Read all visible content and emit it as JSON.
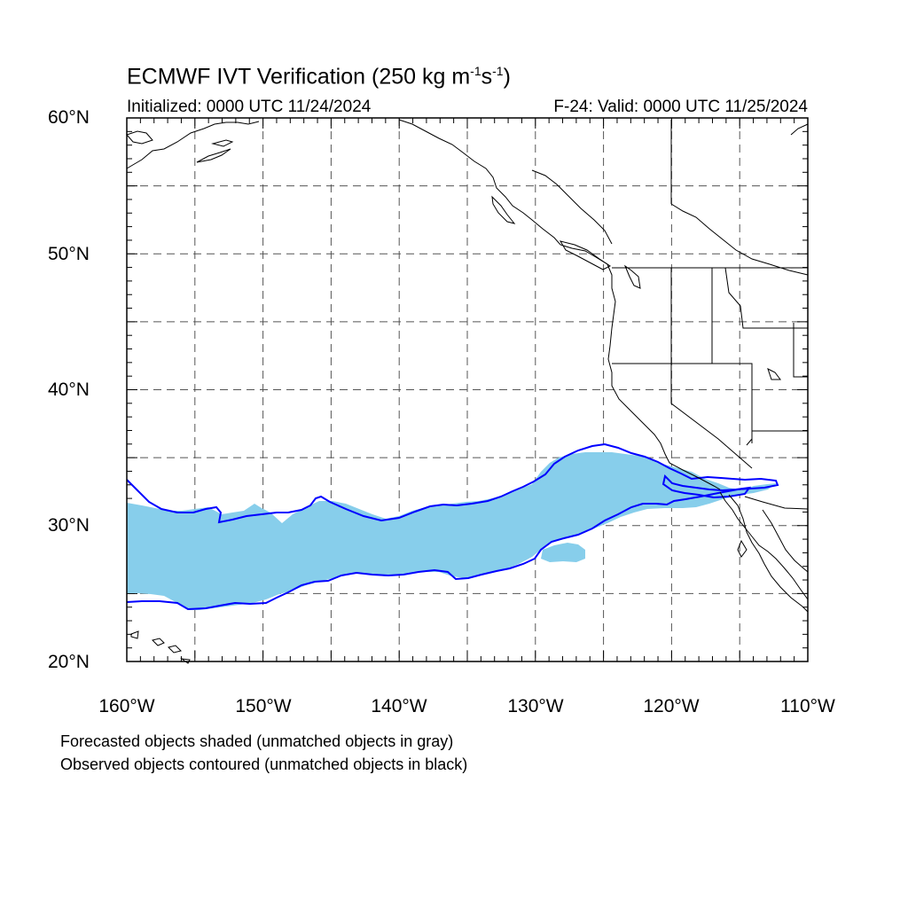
{
  "title": {
    "main": "ECMWF IVT Verification (250 kg m",
    "sup1": "-1",
    "mid": "s",
    "sup2": "-1",
    "end": ")"
  },
  "subtitle": {
    "initialized": "Initialized: 0000 UTC 11/24/2024",
    "valid": "F-24: Valid: 0000 UTC 11/25/2024"
  },
  "map": {
    "lon_range": [
      -160,
      -110
    ],
    "lat_range": [
      20,
      60
    ],
    "grid": "dashed",
    "grid_lons": [
      -155,
      -150,
      -145,
      -140,
      -135,
      -130,
      -125,
      -120,
      -115
    ],
    "grid_lats": [
      25,
      30,
      35,
      40,
      45,
      50,
      55
    ],
    "lat_labels": [
      "60°N",
      "50°N",
      "40°N",
      "30°N",
      "20°N"
    ],
    "lon_labels": [
      "160°W",
      "150°W",
      "140°W",
      "130°W",
      "120°W",
      "110°W"
    ],
    "colors": {
      "forecast_fill": "#87ceeb",
      "observed_contour": "#0000ff",
      "coastline": "#000000",
      "grid": "#555555"
    }
  },
  "legend": {
    "line1": "Forecasted objects shaded (unmatched objects in gray)",
    "line2": "Observed objects contoured (unmatched objects in black)"
  }
}
